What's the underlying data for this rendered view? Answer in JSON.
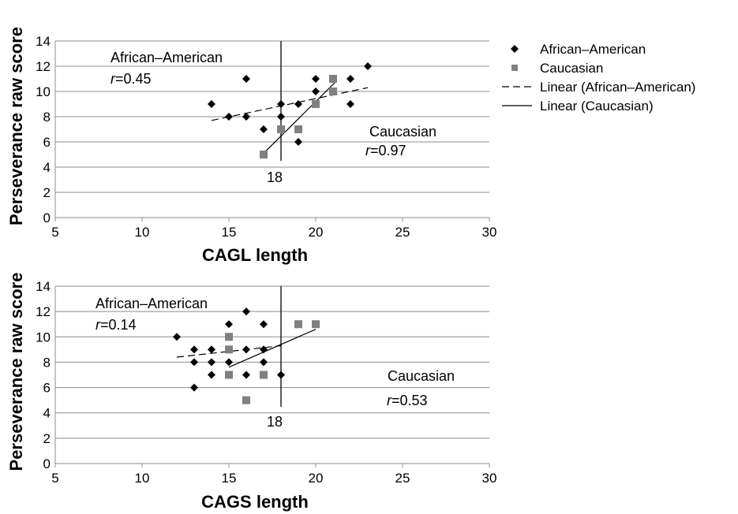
{
  "chart_data": [
    {
      "type": "scatter",
      "title": "",
      "xlabel": "CAGL length",
      "ylabel": "Perseverance raw score",
      "xlim": [
        5,
        30
      ],
      "ylim": [
        0,
        14
      ],
      "x_ticks": [
        "5",
        "10",
        "15",
        "20",
        "25",
        "30"
      ],
      "y_ticks": [
        "0",
        "2",
        "4",
        "6",
        "8",
        "10",
        "12",
        "14"
      ],
      "grid": true,
      "series": [
        {
          "name": "African–American",
          "marker": "diamond",
          "color": "#000000",
          "points": [
            [
              14,
              9
            ],
            [
              15,
              8
            ],
            [
              16,
              11
            ],
            [
              16,
              8
            ],
            [
              17,
              7
            ],
            [
              18,
              9
            ],
            [
              18,
              8
            ],
            [
              19,
              9
            ],
            [
              19,
              6
            ],
            [
              20,
              10
            ],
            [
              20,
              11
            ],
            [
              22,
              11
            ],
            [
              22,
              9
            ],
            [
              23,
              12
            ]
          ]
        },
        {
          "name": "Caucasian",
          "marker": "square",
          "color": "#808080",
          "points": [
            [
              17,
              5
            ],
            [
              18,
              7
            ],
            [
              19,
              7
            ],
            [
              20,
              9
            ],
            [
              21,
              11
            ],
            [
              21,
              10
            ]
          ]
        }
      ],
      "trendlines": [
        {
          "name": "Linear (African–American)",
          "style": "dashed",
          "x": [
            14,
            23
          ],
          "y": [
            7.7,
            10.3
          ]
        },
        {
          "name": "Linear (Caucasian)",
          "style": "solid",
          "x": [
            17,
            21.1
          ],
          "y": [
            5.1,
            10.7
          ]
        }
      ],
      "vline": {
        "x": 18,
        "label": "18"
      },
      "annotations": {
        "aa_group": "African–American",
        "aa_r_italic": "r",
        "aa_r_value": "=0.45",
        "cau_group": "Caucasian",
        "cau_r_italic": "r",
        "cau_r_value": "=0.97"
      }
    },
    {
      "type": "scatter",
      "title": "",
      "xlabel": "CAGS length",
      "ylabel": "Perseverance raw score",
      "xlim": [
        5,
        30
      ],
      "ylim": [
        0,
        14
      ],
      "x_ticks": [
        "5",
        "10",
        "15",
        "20",
        "25",
        "30"
      ],
      "y_ticks": [
        "0",
        "2",
        "4",
        "6",
        "8",
        "10",
        "12",
        "14"
      ],
      "grid": true,
      "series": [
        {
          "name": "African–American",
          "marker": "diamond",
          "color": "#000000",
          "points": [
            [
              12,
              10
            ],
            [
              13,
              9
            ],
            [
              13,
              8
            ],
            [
              13,
              6
            ],
            [
              14,
              9
            ],
            [
              14,
              8
            ],
            [
              14,
              7
            ],
            [
              15,
              11
            ],
            [
              15,
              9
            ],
            [
              15,
              8
            ],
            [
              16,
              12
            ],
            [
              16,
              9
            ],
            [
              16,
              7
            ],
            [
              17,
              11
            ],
            [
              17,
              9
            ],
            [
              17,
              8
            ],
            [
              18,
              7
            ]
          ]
        },
        {
          "name": "Caucasian",
          "marker": "square",
          "color": "#808080",
          "points": [
            [
              15,
              10
            ],
            [
              15,
              9
            ],
            [
              15,
              7
            ],
            [
              16,
              5
            ],
            [
              17,
              7
            ],
            [
              19,
              11
            ],
            [
              20,
              11
            ]
          ]
        }
      ],
      "trendlines": [
        {
          "name": "Linear (African–American)",
          "style": "dashed",
          "x": [
            12,
            18
          ],
          "y": [
            8.4,
            9.3
          ]
        },
        {
          "name": "Linear (Caucasian)",
          "style": "solid",
          "x": [
            15,
            20
          ],
          "y": [
            7.6,
            10.6
          ]
        }
      ],
      "vline": {
        "x": 18,
        "label": "18"
      },
      "annotations": {
        "aa_group": "African–American",
        "aa_r_italic": "r",
        "aa_r_value": "=0.14",
        "cau_group": "Caucasian",
        "cau_r_italic": "r",
        "cau_r_value": "=0.53"
      }
    }
  ],
  "legend": {
    "placement": "top-right",
    "items": [
      {
        "label": "African–American",
        "kind": "diamond",
        "color": "#000000"
      },
      {
        "label": "Caucasian",
        "kind": "square",
        "color": "#808080"
      },
      {
        "label": "Linear (African–American)",
        "kind": "dashed-line",
        "color": "#000000"
      },
      {
        "label": "Linear (Caucasian)",
        "kind": "solid-line",
        "color": "#000000"
      }
    ]
  }
}
